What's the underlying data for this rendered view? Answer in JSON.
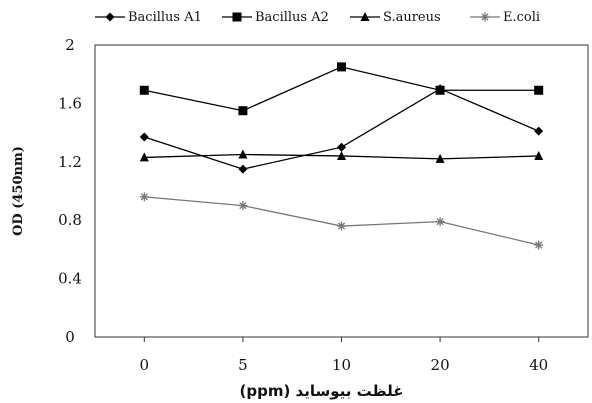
{
  "chart_data": {
    "type": "line",
    "x": [
      "0",
      "5",
      "10",
      "20",
      "40"
    ],
    "xlabel": "غلظت بیوساید (ppm)",
    "ylabel": "OD (450nm)",
    "ylim": [
      0,
      2
    ],
    "yticks": [
      0,
      0.4,
      0.8,
      1.2,
      1.6,
      2
    ],
    "ytick_labels": [
      "0",
      "0.4",
      "0.8",
      "1.2",
      "1.6",
      "2"
    ],
    "legend_position": "top",
    "grid": false,
    "series": [
      {
        "name": "Bacillus A1",
        "marker": "diamond",
        "color": "#000000",
        "values": [
          1.37,
          1.15,
          1.3,
          1.7,
          1.41
        ]
      },
      {
        "name": "Bacillus A2",
        "marker": "square",
        "color": "#000000",
        "values": [
          1.69,
          1.55,
          1.85,
          1.69,
          1.69
        ]
      },
      {
        "name": "S.aureus",
        "marker": "triangle",
        "color": "#000000",
        "values": [
          1.23,
          1.25,
          1.24,
          1.22,
          1.24
        ]
      },
      {
        "name": "E.coli",
        "marker": "asterisk",
        "color": "#777777",
        "values": [
          0.96,
          0.9,
          0.76,
          0.79,
          0.63
        ]
      }
    ]
  }
}
